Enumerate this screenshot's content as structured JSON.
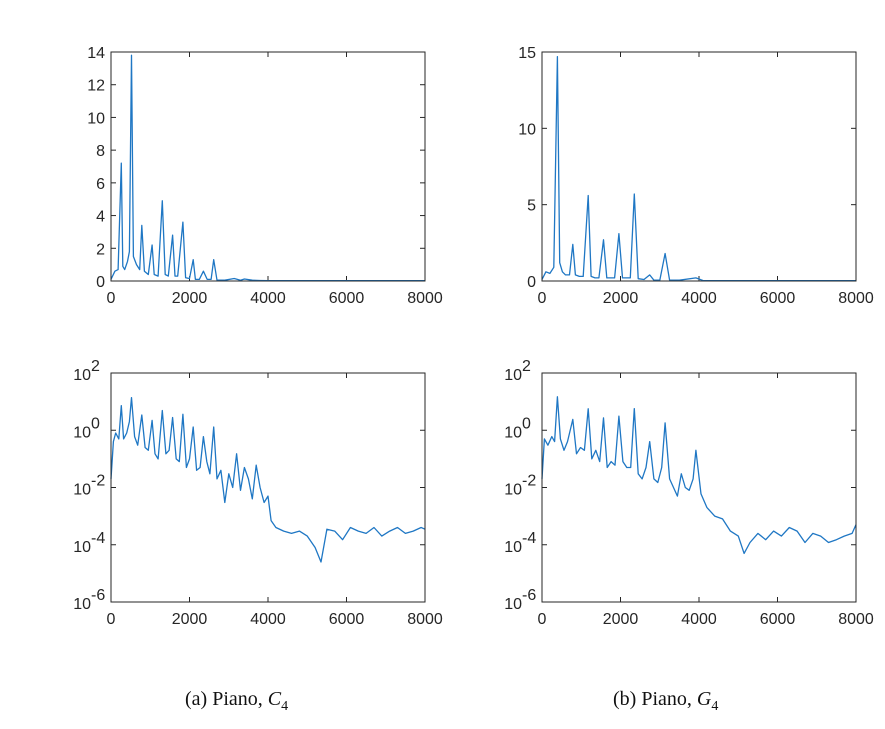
{
  "captions": [
    {
      "prefix": "(a) Piano, ",
      "note": "C",
      "sub": "4"
    },
    {
      "prefix": "(b) Piano, ",
      "note": "G",
      "sub": "4"
    }
  ],
  "colors": {
    "series": "#1f77c4",
    "axis": "#262626"
  },
  "chart_data": [
    {
      "type": "line",
      "panel": "top-left",
      "yscale": "linear",
      "xlim": [
        0,
        8000
      ],
      "ylim": [
        0,
        14
      ],
      "xticks": [
        0,
        2000,
        4000,
        6000,
        8000
      ],
      "yticks": [
        0,
        2,
        4,
        6,
        8,
        10,
        12,
        14
      ],
      "series": [
        {
          "x": [
            0,
            100,
            180,
            262,
            300,
            350,
            420,
            470,
            523,
            570,
            650,
            730,
            785,
            850,
            950,
            1046,
            1100,
            1200,
            1308,
            1380,
            1460,
            1570,
            1630,
            1700,
            1831,
            1900,
            2000,
            2093,
            2150,
            2250,
            2354,
            2450,
            2550,
            2616,
            2700,
            2900,
            3140,
            3300,
            3400,
            3600,
            3800,
            4000,
            5000,
            6000,
            7000,
            8000
          ],
          "y": [
            0.1,
            0.6,
            0.7,
            7.2,
            0.9,
            0.7,
            1.2,
            1.8,
            13.8,
            1.5,
            1.0,
            0.7,
            3.4,
            0.6,
            0.4,
            2.2,
            0.4,
            0.3,
            4.9,
            0.4,
            0.3,
            2.8,
            0.3,
            0.3,
            3.6,
            0.2,
            0.15,
            1.3,
            0.1,
            0.1,
            0.6,
            0.1,
            0.1,
            1.3,
            0.05,
            0.05,
            0.15,
            0.05,
            0.12,
            0.05,
            0.03,
            0.02,
            0.02,
            0.02,
            0.02,
            0.02
          ]
        }
      ]
    },
    {
      "type": "line",
      "panel": "top-right",
      "yscale": "linear",
      "xlim": [
        0,
        8000
      ],
      "ylim": [
        0,
        15
      ],
      "xticks": [
        0,
        2000,
        4000,
        6000,
        8000
      ],
      "yticks": [
        0,
        5,
        10,
        15
      ],
      "series": [
        {
          "x": [
            0,
            100,
            200,
            300,
            392,
            450,
            520,
            600,
            700,
            784,
            850,
            950,
            1050,
            1176,
            1250,
            1350,
            1450,
            1568,
            1650,
            1750,
            1850,
            1960,
            2050,
            2150,
            2250,
            2352,
            2450,
            2600,
            2744,
            2850,
            3000,
            3136,
            3250,
            3500,
            3920,
            4100,
            4500,
            5000,
            6000,
            7000,
            8000
          ],
          "y": [
            0.1,
            0.6,
            0.5,
            0.9,
            14.7,
            1.2,
            0.6,
            0.4,
            0.4,
            2.4,
            0.4,
            0.3,
            0.3,
            5.6,
            0.3,
            0.2,
            0.2,
            2.7,
            0.2,
            0.2,
            0.2,
            3.1,
            0.2,
            0.2,
            0.2,
            5.7,
            0.15,
            0.1,
            0.4,
            0.05,
            0.05,
            1.8,
            0.05,
            0.05,
            0.2,
            0.03,
            0.02,
            0.02,
            0.02,
            0.02,
            0.02
          ]
        }
      ]
    },
    {
      "type": "line",
      "panel": "bottom-left",
      "yscale": "log",
      "xlim": [
        0,
        8000
      ],
      "ylim": [
        1e-06,
        100
      ],
      "xticks": [
        0,
        2000,
        4000,
        6000,
        8000
      ],
      "yticks": [
        1e-06,
        0.0001,
        0.01,
        1,
        100
      ],
      "ytick_labels": [
        {
          "base": "10",
          "exp": "-6"
        },
        {
          "base": "10",
          "exp": "-4"
        },
        {
          "base": "10",
          "exp": "-2"
        },
        {
          "base": "10",
          "exp": "0"
        },
        {
          "base": "10",
          "exp": "2"
        }
      ],
      "series": [
        {
          "x": [
            0,
            60,
            120,
            200,
            262,
            320,
            400,
            470,
            523,
            600,
            680,
            785,
            870,
            950,
            1046,
            1120,
            1200,
            1308,
            1400,
            1480,
            1570,
            1660,
            1740,
            1831,
            1920,
            2000,
            2093,
            2180,
            2270,
            2354,
            2440,
            2520,
            2616,
            2700,
            2800,
            2900,
            3000,
            3100,
            3200,
            3300,
            3400,
            3500,
            3600,
            3700,
            3800,
            3900,
            4000,
            4080,
            4200,
            4400,
            4600,
            4800,
            5000,
            5200,
            5350,
            5500,
            5700,
            5900,
            6100,
            6300,
            6500,
            6700,
            6900,
            7100,
            7300,
            7500,
            7700,
            7900,
            8000
          ],
          "y": [
            0.02,
            0.4,
            0.8,
            0.5,
            7.2,
            0.5,
            0.8,
            2,
            13.8,
            0.6,
            0.3,
            3.4,
            0.25,
            0.2,
            2.2,
            0.15,
            0.1,
            4.9,
            0.15,
            0.2,
            2.8,
            0.1,
            0.08,
            3.6,
            0.05,
            0.1,
            1.3,
            0.04,
            0.05,
            0.6,
            0.08,
            0.03,
            1.3,
            0.02,
            0.04,
            0.003,
            0.03,
            0.01,
            0.15,
            0.008,
            0.05,
            0.02,
            0.004,
            0.06,
            0.01,
            0.003,
            0.005,
            0.0007,
            0.0004,
            0.0003,
            0.00025,
            0.0003,
            0.0002,
            8e-05,
            2.5e-05,
            0.00035,
            0.0003,
            0.00015,
            0.0004,
            0.0003,
            0.00025,
            0.0004,
            0.0002,
            0.0003,
            0.0004,
            0.00025,
            0.0003,
            0.0004,
            0.00035
          ]
        }
      ]
    },
    {
      "type": "line",
      "panel": "bottom-right",
      "yscale": "log",
      "xlim": [
        0,
        8000
      ],
      "ylim": [
        1e-06,
        100
      ],
      "xticks": [
        0,
        2000,
        4000,
        6000,
        8000
      ],
      "yticks": [
        1e-06,
        0.0001,
        0.01,
        1,
        100
      ],
      "ytick_labels": [
        {
          "base": "10",
          "exp": "-6"
        },
        {
          "base": "10",
          "exp": "-4"
        },
        {
          "base": "10",
          "exp": "-2"
        },
        {
          "base": "10",
          "exp": "0"
        },
        {
          "base": "10",
          "exp": "2"
        }
      ],
      "series": [
        {
          "x": [
            0,
            60,
            150,
            250,
            320,
            392,
            470,
            560,
            650,
            784,
            880,
            980,
            1080,
            1176,
            1270,
            1370,
            1470,
            1568,
            1660,
            1760,
            1860,
            1960,
            2060,
            2160,
            2260,
            2352,
            2450,
            2550,
            2650,
            2744,
            2850,
            2950,
            3050,
            3136,
            3250,
            3350,
            3450,
            3550,
            3650,
            3750,
            3850,
            3920,
            4050,
            4200,
            4400,
            4600,
            4800,
            5000,
            5150,
            5300,
            5500,
            5700,
            5900,
            6100,
            6300,
            6500,
            6700,
            6900,
            7100,
            7300,
            7500,
            7700,
            7900,
            8000
          ],
          "y": [
            0.02,
            0.5,
            0.3,
            0.6,
            0.4,
            14.7,
            0.5,
            0.2,
            0.4,
            2.4,
            0.15,
            0.25,
            0.2,
            5.6,
            0.1,
            0.2,
            0.08,
            2.7,
            0.05,
            0.08,
            0.06,
            3.1,
            0.08,
            0.05,
            0.05,
            5.7,
            0.03,
            0.02,
            0.05,
            0.4,
            0.02,
            0.015,
            0.05,
            1.8,
            0.02,
            0.01,
            0.005,
            0.03,
            0.01,
            0.008,
            0.02,
            0.2,
            0.006,
            0.002,
            0.001,
            0.0008,
            0.0003,
            0.0002,
            5e-05,
            0.00012,
            0.00025,
            0.00015,
            0.0003,
            0.0002,
            0.0004,
            0.0003,
            0.00012,
            0.00025,
            0.0002,
            0.00012,
            0.00015,
            0.0002,
            0.00025,
            0.0005
          ]
        }
      ]
    }
  ]
}
